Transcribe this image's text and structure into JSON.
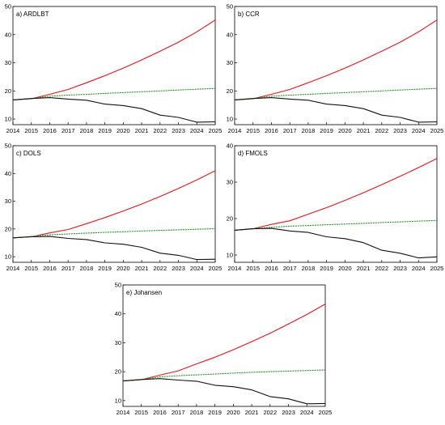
{
  "chart_data": [
    {
      "type": "line",
      "title": "a) ARDLBT",
      "x": [
        2014,
        2015,
        2016,
        2017,
        2018,
        2019,
        2020,
        2021,
        2022,
        2023,
        2024,
        2025
      ],
      "xlim": [
        2014,
        2025
      ],
      "ylim": [
        8,
        50
      ],
      "yticks": [
        10,
        20,
        30,
        40,
        50
      ],
      "grid": false,
      "series": [
        {
          "color": "#e8141b",
          "x": [
            2014,
            2015,
            2016,
            2017,
            2018,
            2019,
            2020,
            2021,
            2022,
            2023,
            2024,
            2025
          ],
          "values": [
            16.8,
            17.2,
            18.8,
            20.5,
            22.9,
            25.4,
            28.1,
            31.0,
            34.1,
            37.3,
            41.0,
            45.2
          ]
        },
        {
          "color": "#2a8a2a",
          "dashed": true,
          "x": [
            2014,
            2015,
            2016,
            2017,
            2018,
            2019,
            2020,
            2021,
            2022,
            2023,
            2024,
            2025
          ],
          "values": [
            16.8,
            17.3,
            18.1,
            18.5,
            18.8,
            19.1,
            19.4,
            19.7,
            20.0,
            20.3,
            20.6,
            20.9
          ]
        },
        {
          "color": "#111111",
          "x": [
            2014,
            2015,
            2016,
            2017,
            2018,
            2019,
            2020,
            2021,
            2022,
            2023,
            2024,
            2025
          ],
          "values": [
            16.8,
            17.3,
            17.6,
            17.1,
            16.7,
            15.3,
            14.8,
            13.7,
            11.4,
            10.6,
            8.9,
            9.0
          ]
        }
      ]
    },
    {
      "type": "line",
      "title": "b) CCR",
      "x": [
        2014,
        2015,
        2016,
        2017,
        2018,
        2019,
        2020,
        2021,
        2022,
        2023,
        2024,
        2025
      ],
      "xlim": [
        2014,
        2025
      ],
      "ylim": [
        8,
        50
      ],
      "yticks": [
        10,
        20,
        30,
        40,
        50
      ],
      "grid": false,
      "series": [
        {
          "color": "#e8141b",
          "x": [
            2014,
            2015,
            2016,
            2017,
            2018,
            2019,
            2020,
            2021,
            2022,
            2023,
            2024,
            2025
          ],
          "values": [
            16.8,
            17.2,
            18.8,
            20.5,
            22.9,
            25.4,
            28.1,
            31.0,
            34.1,
            37.3,
            41.0,
            45.2
          ]
        },
        {
          "color": "#2a8a2a",
          "dashed": true,
          "x": [
            2014,
            2015,
            2016,
            2017,
            2018,
            2019,
            2020,
            2021,
            2022,
            2023,
            2024,
            2025
          ],
          "values": [
            16.8,
            17.3,
            18.1,
            18.5,
            18.8,
            19.1,
            19.4,
            19.7,
            20.0,
            20.3,
            20.6,
            20.9
          ]
        },
        {
          "color": "#111111",
          "x": [
            2014,
            2015,
            2016,
            2017,
            2018,
            2019,
            2020,
            2021,
            2022,
            2023,
            2024,
            2025
          ],
          "values": [
            16.8,
            17.3,
            17.6,
            17.1,
            16.7,
            15.3,
            14.8,
            13.7,
            11.4,
            10.6,
            8.9,
            9.0
          ]
        }
      ]
    },
    {
      "type": "line",
      "title": "c) DOLS",
      "x": [
        2014,
        2015,
        2016,
        2017,
        2018,
        2019,
        2020,
        2021,
        2022,
        2023,
        2024,
        2025
      ],
      "xlim": [
        2014,
        2025
      ],
      "ylim": [
        8,
        50
      ],
      "yticks": [
        10,
        20,
        30,
        40,
        50
      ],
      "grid": false,
      "series": [
        {
          "color": "#e8141b",
          "x": [
            2014,
            2015,
            2016,
            2017,
            2018,
            2019,
            2020,
            2021,
            2022,
            2023,
            2024,
            2025
          ],
          "values": [
            16.8,
            17.2,
            18.6,
            19.8,
            21.9,
            24.1,
            26.5,
            29.0,
            31.7,
            34.6,
            37.7,
            41.0
          ]
        },
        {
          "color": "#2a8a2a",
          "dashed": true,
          "x": [
            2014,
            2015,
            2016,
            2017,
            2018,
            2019,
            2020,
            2021,
            2022,
            2023,
            2024,
            2025
          ],
          "values": [
            16.8,
            17.3,
            17.9,
            18.2,
            18.5,
            18.8,
            19.0,
            19.3,
            19.5,
            19.7,
            19.9,
            20.1
          ]
        },
        {
          "color": "#111111",
          "x": [
            2014,
            2015,
            2016,
            2017,
            2018,
            2019,
            2020,
            2021,
            2022,
            2023,
            2024,
            2025
          ],
          "values": [
            16.8,
            17.2,
            17.3,
            16.6,
            16.2,
            15.0,
            14.5,
            13.4,
            11.3,
            10.5,
            9.0,
            9.1
          ]
        }
      ]
    },
    {
      "type": "line",
      "title": "d) FMOLS",
      "x": [
        2014,
        2015,
        2016,
        2017,
        2018,
        2019,
        2020,
        2021,
        2022,
        2023,
        2024,
        2025
      ],
      "xlim": [
        2014,
        2025
      ],
      "ylim": [
        8,
        40
      ],
      "yticks": [
        10,
        20,
        30,
        40
      ],
      "grid": false,
      "series": [
        {
          "color": "#e8141b",
          "x": [
            2014,
            2015,
            2016,
            2017,
            2018,
            2019,
            2020,
            2021,
            2022,
            2023,
            2024,
            2025
          ],
          "values": [
            16.8,
            17.2,
            18.4,
            19.4,
            21.2,
            23.0,
            25.0,
            27.1,
            29.3,
            31.6,
            34.0,
            36.5
          ]
        },
        {
          "color": "#2a8a2a",
          "dashed": true,
          "x": [
            2014,
            2015,
            2016,
            2017,
            2018,
            2019,
            2020,
            2021,
            2022,
            2023,
            2024,
            2025
          ],
          "values": [
            16.8,
            17.2,
            17.6,
            17.9,
            18.1,
            18.3,
            18.5,
            18.7,
            18.9,
            19.1,
            19.3,
            19.5
          ]
        },
        {
          "color": "#111111",
          "x": [
            2014,
            2015,
            2016,
            2017,
            2018,
            2019,
            2020,
            2021,
            2022,
            2023,
            2024,
            2025
          ],
          "values": [
            16.8,
            17.2,
            17.3,
            16.6,
            16.2,
            15.0,
            14.5,
            13.4,
            11.3,
            10.5,
            9.2,
            9.5
          ]
        }
      ]
    },
    {
      "type": "line",
      "title": "e) Johansen",
      "x": [
        2014,
        2015,
        2016,
        2017,
        2018,
        2019,
        2020,
        2021,
        2022,
        2023,
        2024,
        2025
      ],
      "xlim": [
        2014,
        2025
      ],
      "ylim": [
        8,
        50
      ],
      "yticks": [
        10,
        20,
        30,
        40,
        50
      ],
      "grid": false,
      "series": [
        {
          "color": "#e8141b",
          "x": [
            2014,
            2015,
            2016,
            2017,
            2018,
            2019,
            2020,
            2021,
            2022,
            2023,
            2024,
            2025
          ],
          "values": [
            16.8,
            17.2,
            18.8,
            20.3,
            22.7,
            25.0,
            27.6,
            30.4,
            33.3,
            36.5,
            39.8,
            43.4
          ]
        },
        {
          "color": "#2a8a2a",
          "dashed": true,
          "x": [
            2014,
            2015,
            2016,
            2017,
            2018,
            2019,
            2020,
            2021,
            2022,
            2023,
            2024,
            2025
          ],
          "values": [
            16.8,
            17.3,
            18.2,
            18.6,
            18.9,
            19.2,
            19.5,
            19.8,
            20.0,
            20.2,
            20.4,
            20.6
          ]
        },
        {
          "color": "#111111",
          "x": [
            2014,
            2015,
            2016,
            2017,
            2018,
            2019,
            2020,
            2021,
            2022,
            2023,
            2024,
            2025
          ],
          "values": [
            16.8,
            17.3,
            17.6,
            17.1,
            16.7,
            15.3,
            14.8,
            13.7,
            11.4,
            10.6,
            8.9,
            9.0
          ]
        }
      ]
    }
  ]
}
